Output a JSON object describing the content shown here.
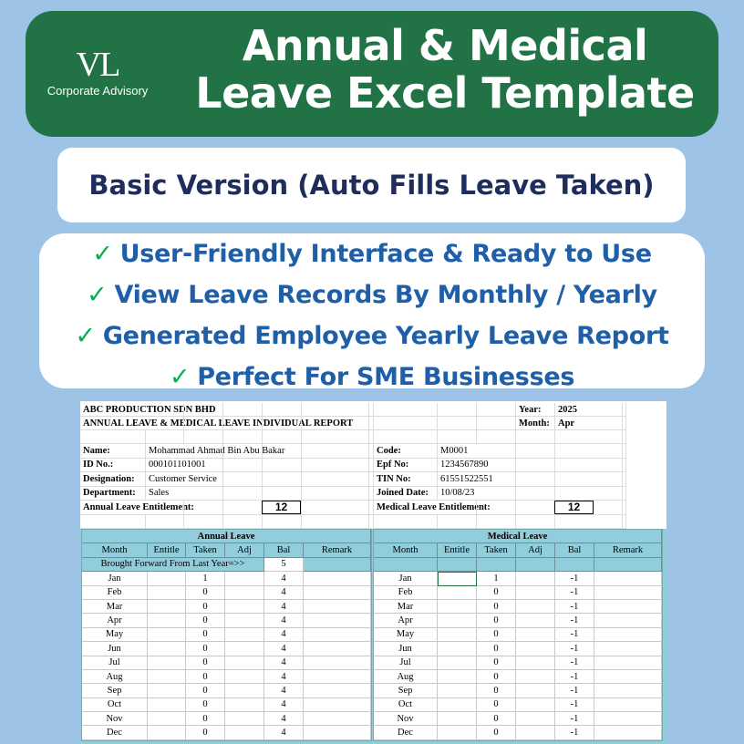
{
  "banner": {
    "logo_mark": "VL",
    "logo_text": "Corporate Advisory",
    "title_line1": "Annual & Medical",
    "title_line2": "Leave Excel Template",
    "bg_color": "#217346"
  },
  "subtitle": "Basic Version (Auto Fills Leave Taken)",
  "features": [
    {
      "icon": "check-icon",
      "text": "User-Friendly Interface & Ready to Use"
    },
    {
      "icon": "check-icon",
      "text": "View Leave Records By Monthly / Yearly"
    },
    {
      "icon": "check-icon",
      "text": "Generated Employee Yearly Leave Report"
    },
    {
      "icon": "check-icon",
      "text": "Perfect For SME Businesses"
    }
  ],
  "check_symbol": "✓",
  "sheet": {
    "company": "ABC PRODUCTION SDN BHD",
    "report_title": "ANNUAL LEAVE & MEDICAL LEAVE INDIVIDUAL REPORT",
    "year_label": "Year:",
    "year": "2025",
    "month_label": "Month:",
    "month": "Apr",
    "left_info": [
      {
        "label": "Name:",
        "value": "Mohammad Ahmad Bin Abu Bakar"
      },
      {
        "label": "ID No.:",
        "value": "000101101001"
      },
      {
        "label": "Designation:",
        "value": "Customer Service"
      },
      {
        "label": "Department:",
        "value": "Sales"
      }
    ],
    "right_info": [
      {
        "label": "Code:",
        "value": "M0001"
      },
      {
        "label": "Epf No:",
        "value": "1234567890"
      },
      {
        "label": "TIN No:",
        "value": "61551522551"
      },
      {
        "label": "Joined Date:",
        "value": "10/08/23"
      }
    ],
    "annual_entitlement_label": "Annual Leave Entitlement:",
    "annual_entitlement": "12",
    "medical_entitlement_label": "Medical Leave Entitlement:",
    "medical_entitlement": "12",
    "columns": [
      "Month",
      "Entitle",
      "Taken",
      "Adj",
      "Bal",
      "Remark"
    ],
    "annual": {
      "title": "Annual Leave",
      "brought_forward_label": "Brought Forward From Last Year=>>",
      "brought_forward": "5",
      "rows": [
        {
          "month": "Jan",
          "entitle": "",
          "taken": "1",
          "adj": "",
          "bal": "4",
          "remark": ""
        },
        {
          "month": "Feb",
          "entitle": "",
          "taken": "0",
          "adj": "",
          "bal": "4",
          "remark": ""
        },
        {
          "month": "Mar",
          "entitle": "",
          "taken": "0",
          "adj": "",
          "bal": "4",
          "remark": ""
        },
        {
          "month": "Apr",
          "entitle": "",
          "taken": "0",
          "adj": "",
          "bal": "4",
          "remark": ""
        },
        {
          "month": "May",
          "entitle": "",
          "taken": "0",
          "adj": "",
          "bal": "4",
          "remark": ""
        },
        {
          "month": "Jun",
          "entitle": "",
          "taken": "0",
          "adj": "",
          "bal": "4",
          "remark": ""
        },
        {
          "month": "Jul",
          "entitle": "",
          "taken": "0",
          "adj": "",
          "bal": "4",
          "remark": ""
        },
        {
          "month": "Aug",
          "entitle": "",
          "taken": "0",
          "adj": "",
          "bal": "4",
          "remark": ""
        },
        {
          "month": "Sep",
          "entitle": "",
          "taken": "0",
          "adj": "",
          "bal": "4",
          "remark": ""
        },
        {
          "month": "Oct",
          "entitle": "",
          "taken": "0",
          "adj": "",
          "bal": "4",
          "remark": ""
        },
        {
          "month": "Nov",
          "entitle": "",
          "taken": "0",
          "adj": "",
          "bal": "4",
          "remark": ""
        },
        {
          "month": "Dec",
          "entitle": "",
          "taken": "0",
          "adj": "",
          "bal": "4",
          "remark": ""
        }
      ]
    },
    "medical": {
      "title": "Medical Leave",
      "rows": [
        {
          "month": "Jan",
          "entitle": "",
          "taken": "1",
          "adj": "",
          "bal": "-1",
          "remark": ""
        },
        {
          "month": "Feb",
          "entitle": "",
          "taken": "0",
          "adj": "",
          "bal": "-1",
          "remark": ""
        },
        {
          "month": "Mar",
          "entitle": "",
          "taken": "0",
          "adj": "",
          "bal": "-1",
          "remark": ""
        },
        {
          "month": "Apr",
          "entitle": "",
          "taken": "0",
          "adj": "",
          "bal": "-1",
          "remark": ""
        },
        {
          "month": "May",
          "entitle": "",
          "taken": "0",
          "adj": "",
          "bal": "-1",
          "remark": ""
        },
        {
          "month": "Jun",
          "entitle": "",
          "taken": "0",
          "adj": "",
          "bal": "-1",
          "remark": ""
        },
        {
          "month": "Jul",
          "entitle": "",
          "taken": "0",
          "adj": "",
          "bal": "-1",
          "remark": ""
        },
        {
          "month": "Aug",
          "entitle": "",
          "taken": "0",
          "adj": "",
          "bal": "-1",
          "remark": ""
        },
        {
          "month": "Sep",
          "entitle": "",
          "taken": "0",
          "adj": "",
          "bal": "-1",
          "remark": ""
        },
        {
          "month": "Oct",
          "entitle": "",
          "taken": "0",
          "adj": "",
          "bal": "-1",
          "remark": ""
        },
        {
          "month": "Nov",
          "entitle": "",
          "taken": "0",
          "adj": "",
          "bal": "-1",
          "remark": ""
        },
        {
          "month": "Dec",
          "entitle": "",
          "taken": "0",
          "adj": "",
          "bal": "-1",
          "remark": ""
        }
      ]
    }
  }
}
